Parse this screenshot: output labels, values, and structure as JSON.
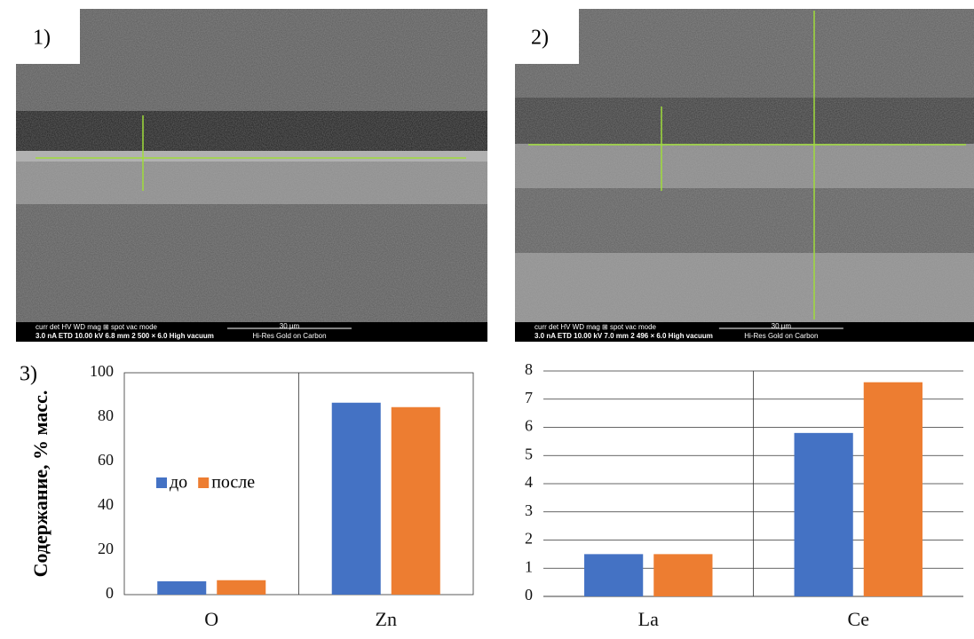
{
  "panels": {
    "labels": [
      "1)",
      "2)",
      "3)"
    ],
    "images": [
      {
        "info_head": "curr   det  HV        WD        mag  ⊞ spot  vac mode",
        "info_values": "3.0 nA  ETD  10.00 kV  6.8 mm  2 500 × 6.0   High vacuum",
        "scale": "30 µm",
        "coating": "Hi-Res Gold on Carbon"
      },
      {
        "info_head": "curr   det  HV        WD        mag  ⊞ spot  vac mode",
        "info_values": "3.0 nA  ETD  10.00 kV  7.0 mm  2 496 × 6.0   High vacuum",
        "scale": "30 µm",
        "coating": "Hi-Res Gold on Carbon"
      }
    ]
  },
  "chart_data": [
    {
      "type": "bar",
      "ylabel": "Содержание, % масс.",
      "categories": [
        "O",
        "Zn"
      ],
      "series": [
        {
          "name": "до",
          "color": "#4472c4",
          "values": [
            6,
            86.5
          ]
        },
        {
          "name": "после",
          "color": "#ed7d31",
          "values": [
            6.5,
            84.5
          ]
        }
      ],
      "ylim": [
        0,
        100
      ],
      "yticks": [
        0,
        20,
        40,
        60,
        80,
        100
      ],
      "grid": false,
      "legend": "left"
    },
    {
      "type": "bar",
      "categories": [
        "La",
        "Ce"
      ],
      "series": [
        {
          "color": "#4472c4",
          "values": [
            1.5,
            5.8
          ]
        },
        {
          "color": "#ed7d31",
          "values": [
            1.5,
            7.6
          ]
        }
      ],
      "ylim": [
        0,
        8
      ],
      "yticks": [
        0,
        1,
        2,
        3,
        4,
        5,
        6,
        7,
        8
      ],
      "grid": true
    }
  ]
}
